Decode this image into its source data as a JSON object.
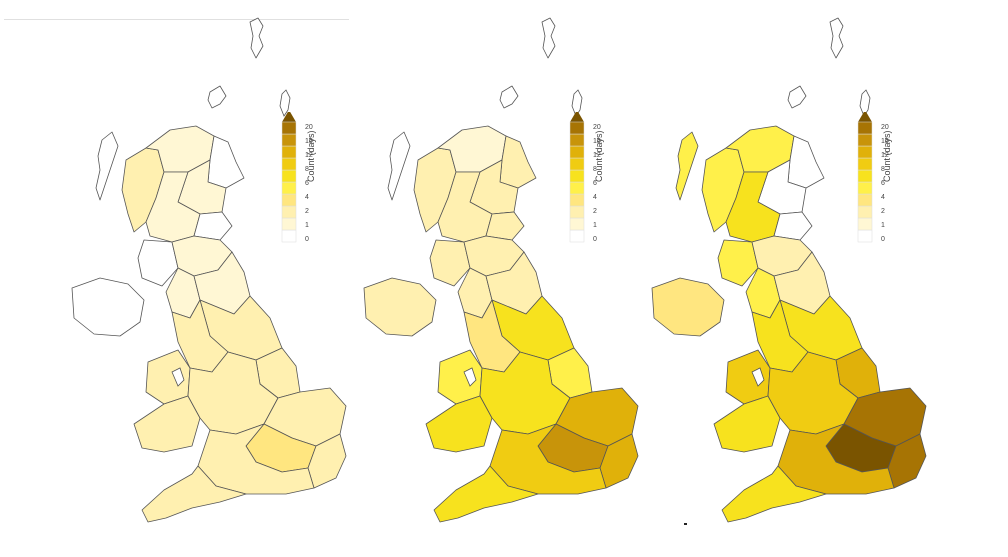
{
  "colors": {
    "scale": [
      "#ffffff",
      "#fff7d4",
      "#fff0b0",
      "#ffe680",
      "#fff04a",
      "#f7e21e",
      "#f0cc12",
      "#e0b10a",
      "#c8940a",
      "#a77404",
      "#7a5400"
    ],
    "border": "#555555"
  },
  "legend": {
    "title": "Count (days)",
    "ticks": [
      "20",
      "16",
      "12",
      "8",
      "6",
      "4",
      "2",
      "1",
      "0"
    ]
  },
  "maps": [
    {
      "label": "map-1",
      "regions": {
        "shetland": 0,
        "orkney": 0,
        "hebrides": 0,
        "nw_highlands": 2,
        "n_highlands": 1,
        "ne_scotland": 0,
        "grampian": 1,
        "central_scotland": 1,
        "fife": 0,
        "borders_scotland": 1,
        "sw_scotland": 0,
        "n_ireland": 0,
        "ne_england": 1,
        "cumbria": 1,
        "yorkshire": 2,
        "nw_england": 2,
        "lincolnshire": 2,
        "midlands": 2,
        "east_anglia": 2,
        "wales_north": 2,
        "wales_south": 2,
        "se_england": 2,
        "london": 3,
        "south_coast": 2,
        "sw_england": 2
      }
    },
    {
      "label": "map-2",
      "regions": {
        "shetland": 0,
        "orkney": 0,
        "hebrides": 0,
        "nw_highlands": 2,
        "n_highlands": 1,
        "ne_scotland": 2,
        "grampian": 2,
        "central_scotland": 2,
        "fife": 2,
        "borders_scotland": 2,
        "sw_scotland": 2,
        "n_ireland": 2,
        "ne_england": 2,
        "cumbria": 2,
        "yorkshire": 5,
        "nw_england": 3,
        "lincolnshire": 4,
        "midlands": 5,
        "east_anglia": 7,
        "wales_north": 4,
        "wales_south": 5,
        "se_england": 7,
        "london": 8,
        "south_coast": 6,
        "sw_england": 5
      }
    },
    {
      "label": "map-3",
      "regions": {
        "shetland": 0,
        "orkney": 0,
        "hebrides": 4,
        "nw_highlands": 4,
        "n_highlands": 4,
        "ne_scotland": 0,
        "grampian": 0,
        "central_scotland": 5,
        "fife": 0,
        "borders_scotland": 2,
        "sw_scotland": 4,
        "n_ireland": 3,
        "ne_england": 2,
        "cumbria": 4,
        "yorkshire": 5,
        "nw_england": 5,
        "lincolnshire": 7,
        "midlands": 6,
        "east_anglia": 9,
        "wales_north": 6,
        "wales_south": 5,
        "se_england": 9,
        "london": 10,
        "south_coast": 7,
        "sw_england": 5
      }
    }
  ]
}
